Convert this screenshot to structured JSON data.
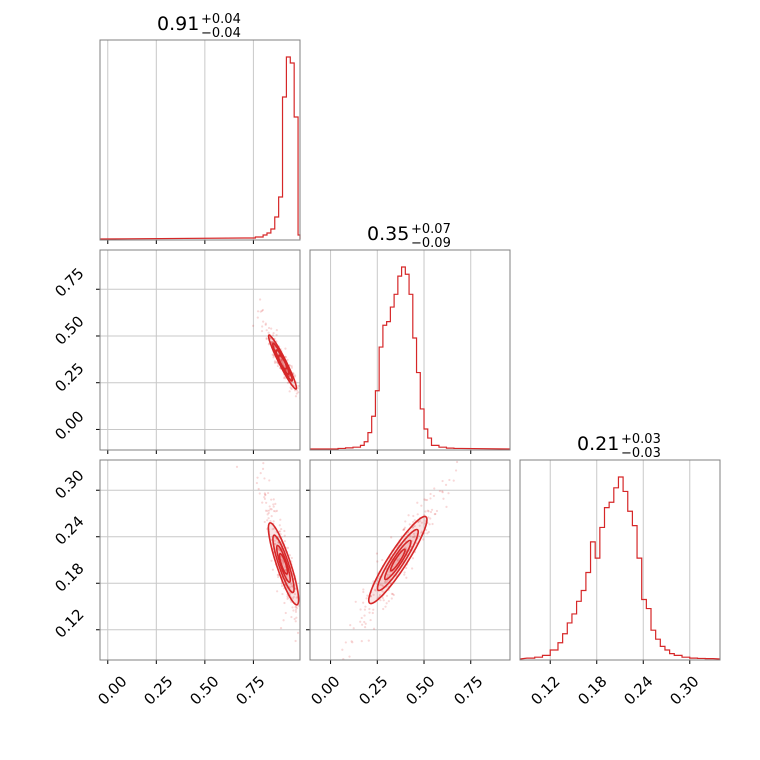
{
  "chart_data": {
    "type": "corner",
    "color": "#d62728",
    "grid": true,
    "titles": [
      {
        "value": "0.91",
        "plus": "+0.04",
        "minus": "−0.04"
      },
      {
        "value": "0.35",
        "plus": "+0.07",
        "minus": "−0.09"
      },
      {
        "value": "0.21",
        "plus": "+0.03",
        "minus": "−0.03"
      }
    ],
    "params": [
      {
        "range": [
          -0.04,
          0.99
        ],
        "ticks": [
          "0.00",
          "0.25",
          "0.50",
          "0.75"
        ],
        "tick_values": [
          0.0,
          0.25,
          0.5,
          0.75
        ]
      },
      {
        "range": [
          -0.11,
          0.96
        ],
        "ticks": [
          "0.00",
          "0.25",
          "0.50",
          "0.75"
        ],
        "tick_values": [
          0.0,
          0.25,
          0.5,
          0.75
        ]
      },
      {
        "range": [
          0.081,
          0.339
        ],
        "ticks": [
          "0.12",
          "0.18",
          "0.24",
          "0.30"
        ],
        "tick_values": [
          0.12,
          0.18,
          0.24,
          0.3
        ]
      }
    ],
    "histograms": [
      {
        "x": [
          0.7,
          0.72,
          0.74,
          0.76,
          0.78,
          0.8,
          0.82,
          0.84,
          0.86,
          0.88,
          0.9,
          0.92,
          0.94,
          0.96,
          0.98
        ],
        "y": [
          0.5,
          0.5,
          0.5,
          1,
          1,
          2,
          3,
          5,
          11,
          21,
          71,
          91,
          88,
          61,
          2
        ]
      },
      {
        "x": [
          0.0,
          0.04,
          0.08,
          0.12,
          0.16,
          0.18,
          0.2,
          0.22,
          0.24,
          0.26,
          0.28,
          0.3,
          0.32,
          0.34,
          0.36,
          0.38,
          0.4,
          0.42,
          0.44,
          0.46,
          0.48,
          0.5,
          0.52,
          0.54,
          0.58,
          0.62,
          0.66
        ],
        "y": [
          0,
          0.3,
          0.6,
          1,
          2,
          4,
          9,
          18,
          32,
          56,
          68,
          70,
          78,
          85,
          95,
          100,
          96,
          85,
          61,
          42,
          22,
          11,
          6,
          2,
          1,
          0.5,
          0.3
        ]
      },
      {
        "x": [
          0.09,
          0.1,
          0.11,
          0.12,
          0.13,
          0.136,
          0.142,
          0.148,
          0.154,
          0.16,
          0.166,
          0.172,
          0.178,
          0.184,
          0.19,
          0.196,
          0.202,
          0.208,
          0.214,
          0.22,
          0.226,
          0.232,
          0.238,
          0.244,
          0.25,
          0.256,
          0.262,
          0.268,
          0.274,
          0.28,
          0.29,
          0.3,
          0.31,
          0.32
        ],
        "y": [
          0.5,
          1,
          2,
          5,
          9,
          14,
          20,
          25,
          32,
          38,
          48,
          65,
          56,
          73,
          84,
          87,
          95,
          101,
          93,
          82,
          74,
          56,
          33,
          28,
          16,
          11,
          7,
          5,
          3,
          2,
          1,
          0.5,
          0.3,
          0.2
        ]
      }
    ]
  }
}
